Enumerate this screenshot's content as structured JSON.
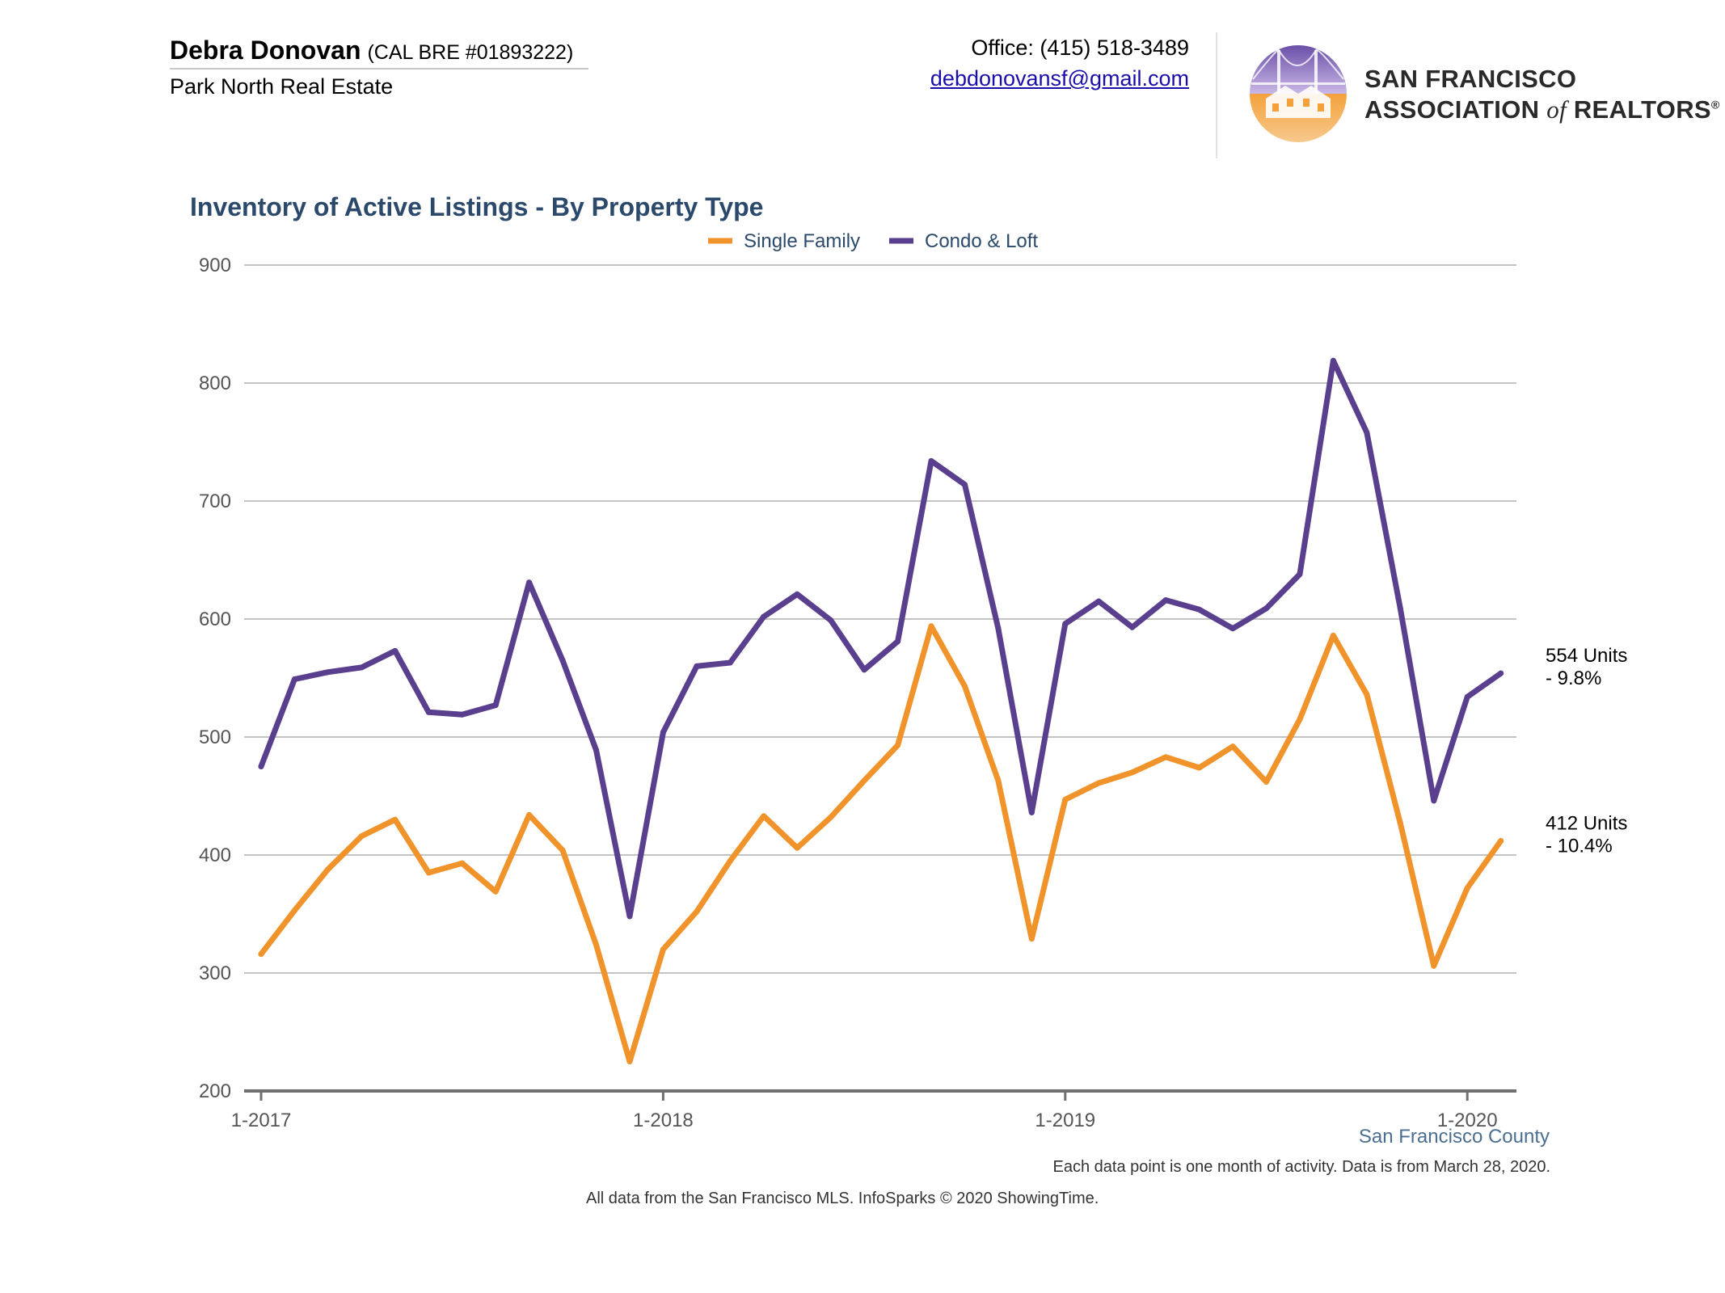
{
  "header": {
    "agent_name": "Debra Donovan",
    "agent_license": "(CAL BRE #01893222)",
    "agent_company": "Park North Real Estate",
    "office_phone": "Office: (415) 518-3489",
    "office_email": "debdonovansf@gmail.com",
    "logo_line_1": "SAN FRANCISCO",
    "logo_line_2_a": "ASSOCIATION ",
    "logo_line_2_of": "of",
    "logo_line_2_b": " REALTORS",
    "logo_registered": "®"
  },
  "colors": {
    "single_family": "#f0932a",
    "condo_loft": "#5b3f8f",
    "title": "#2b4a6b",
    "grid": "#c4c4c4",
    "axis": "#707070"
  },
  "chart_data": {
    "type": "line",
    "title": "Inventory of Active Listings - By Property Type",
    "xlabel": "",
    "ylabel": "",
    "ylim": [
      200,
      900
    ],
    "yticks": [
      200,
      300,
      400,
      500,
      600,
      700,
      800,
      900
    ],
    "xtick_labels": [
      "1-2017",
      "1-2018",
      "1-2019",
      "1-2020"
    ],
    "legend_position": "top-center",
    "grid": true,
    "x": [
      "2017-01",
      "2017-02",
      "2017-03",
      "2017-04",
      "2017-05",
      "2017-06",
      "2017-07",
      "2017-08",
      "2017-09",
      "2017-10",
      "2017-11",
      "2017-12",
      "2018-01",
      "2018-02",
      "2018-03",
      "2018-04",
      "2018-05",
      "2018-06",
      "2018-07",
      "2018-08",
      "2018-09",
      "2018-10",
      "2018-11",
      "2018-12",
      "2019-01",
      "2019-02",
      "2019-03",
      "2019-04",
      "2019-05",
      "2019-06",
      "2019-07",
      "2019-08",
      "2019-09",
      "2019-10",
      "2019-11",
      "2019-12",
      "2020-01",
      "2020-02"
    ],
    "series": [
      {
        "name": "Single Family",
        "color": "#f0932a",
        "values": [
          316,
          353,
          388,
          416,
          430,
          385,
          393,
          369,
          434,
          404,
          324,
          225,
          320,
          352,
          395,
          433,
          406,
          432,
          463,
          493,
          594,
          543,
          463,
          329,
          447,
          461,
          470,
          483,
          474,
          492,
          462,
          515,
          586,
          536,
          427,
          306,
          372,
          412
        ],
        "end_label_1": "412 Units",
        "end_label_2": "- 10.4%"
      },
      {
        "name": "Condo & Loft",
        "color": "#5b3f8f",
        "values": [
          475,
          549,
          555,
          559,
          573,
          521,
          519,
          527,
          631,
          565,
          489,
          348,
          504,
          560,
          563,
          602,
          621,
          599,
          557,
          581,
          734,
          714,
          592,
          436,
          596,
          615,
          593,
          616,
          608,
          592,
          609,
          638,
          819,
          758,
          609,
          446,
          534,
          554
        ],
        "end_label_1": "554 Units",
        "end_label_2": "- 9.8%"
      }
    ]
  },
  "footer": {
    "county": "San Francisco County",
    "note": "Each data point is one month of activity. Data is from March 28, 2020.",
    "source": "All data from the San Francisco MLS. InfoSparks © 2020 ShowingTime."
  }
}
